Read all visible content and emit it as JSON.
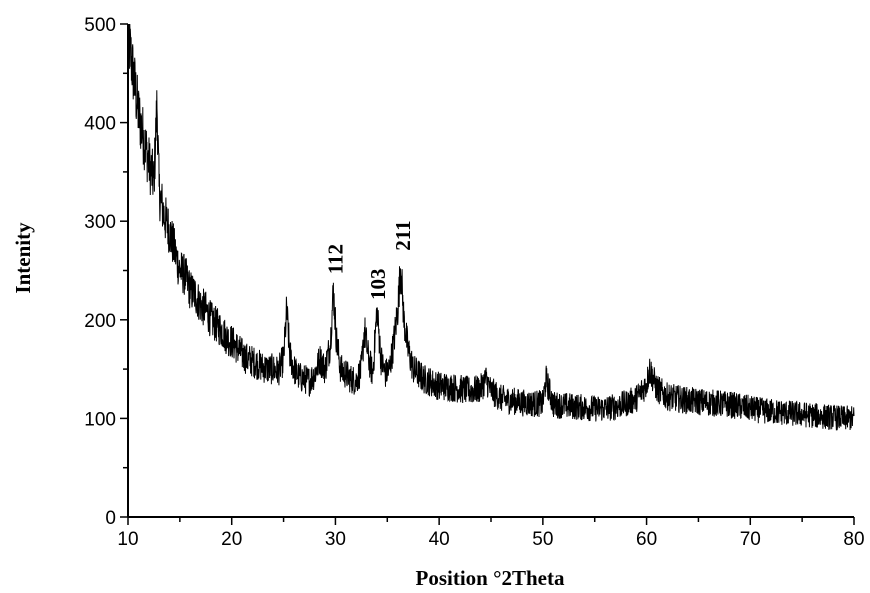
{
  "chart_data": {
    "type": "line",
    "title": "",
    "xlabel": "Position °2Theta",
    "ylabel": "Intenity",
    "xlim": [
      10,
      80
    ],
    "ylim": [
      0,
      500
    ],
    "xticks": [
      10,
      20,
      30,
      40,
      50,
      60,
      70,
      80
    ],
    "yticks": [
      0,
      100,
      200,
      300,
      400,
      500
    ],
    "grid": false,
    "legend": "none",
    "line_color": "#000000",
    "series": [
      {
        "x": [
          10.0,
          10.5,
          11.0,
          11.5,
          12.0,
          12.5,
          12.8,
          13.0,
          13.5,
          14.0,
          14.5,
          15.0,
          15.5,
          16.0,
          16.5,
          17.0,
          17.5,
          18.0,
          18.5,
          19.0,
          19.5,
          20.0,
          20.5,
          21.0,
          21.5,
          22.0,
          22.5,
          23.0,
          23.5,
          24.0,
          24.5,
          25.0,
          25.3,
          25.6,
          26.0,
          26.5,
          27.0,
          27.5,
          28.0,
          28.5,
          29.0,
          29.5,
          29.8,
          30.1,
          30.5,
          31.0,
          31.5,
          32.0,
          32.5,
          32.8,
          33.2,
          33.6,
          34.0,
          34.4,
          34.8,
          35.2,
          35.6,
          36.0,
          36.3,
          36.6,
          37.0,
          37.5,
          38.0,
          38.5,
          39.0,
          39.5,
          40.0,
          41.0,
          42.0,
          43.0,
          44.0,
          44.5,
          45.0,
          46.0,
          47.0,
          48.0,
          49.0,
          50.0,
          50.3,
          51.0,
          52.0,
          53.0,
          54.0,
          55.0,
          56.0,
          57.0,
          58.0,
          59.0,
          60.0,
          60.3,
          61.0,
          62.0,
          63.0,
          64.0,
          65.0,
          66.0,
          67.0,
          68.0,
          69.0,
          70.0,
          71.0,
          72.0,
          73.0,
          74.0,
          75.0,
          76.0,
          77.0,
          78.0,
          79.0,
          80.0
        ],
        "values": [
          490,
          450,
          410,
          385,
          360,
          340,
          420,
          330,
          305,
          290,
          270,
          250,
          245,
          230,
          225,
          215,
          210,
          200,
          195,
          190,
          182,
          178,
          172,
          165,
          160,
          158,
          155,
          152,
          150,
          150,
          148,
          160,
          210,
          165,
          150,
          142,
          140,
          138,
          145,
          160,
          150,
          175,
          230,
          180,
          150,
          145,
          140,
          138,
          150,
          190,
          160,
          145,
          210,
          160,
          145,
          150,
          175,
          210,
          255,
          200,
          170,
          150,
          145,
          140,
          138,
          135,
          133,
          132,
          130,
          128,
          130,
          140,
          128,
          120,
          118,
          116,
          115,
          115,
          140,
          114,
          113,
          112,
          111,
          110,
          110,
          112,
          115,
          120,
          135,
          150,
          130,
          122,
          120,
          118,
          117,
          116,
          115,
          114,
          112,
          110,
          108,
          107,
          106,
          105,
          104,
          103,
          102,
          101,
          100,
          100
        ]
      }
    ],
    "annotations": [
      {
        "text": "112",
        "x": 29.8,
        "y": 238
      },
      {
        "text": "103",
        "x": 33.9,
        "y": 212
      },
      {
        "text": "211",
        "x": 36.3,
        "y": 262
      }
    ]
  }
}
